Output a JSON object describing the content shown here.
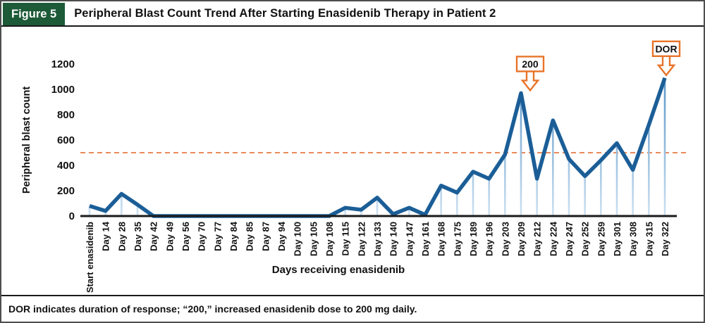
{
  "figure": {
    "label": "Figure 5",
    "title": "Peripheral Blast Count Trend After Starting Enasidenib Therapy in Patient 2",
    "footnote": "DOR indicates duration of response; “200,” increased enasidenib dose to 200 mg daily."
  },
  "chart_data": {
    "type": "line",
    "title": "Peripheral Blast Count Trend After Starting Enasidenib Therapy in Patient 2",
    "xlabel": "Days receiving enasidenib",
    "ylabel": "Peripheral blast count",
    "ylim": [
      0,
      1200
    ],
    "yticks": [
      0,
      200,
      400,
      600,
      800,
      1000,
      1200
    ],
    "grid": false,
    "legend": "none",
    "categories": [
      "Start enasidenib",
      "Day 14",
      "Day 28",
      "Day 35",
      "Day 42",
      "Day 49",
      "Day 56",
      "Day 70",
      "Day 77",
      "Day 84",
      "Day 85",
      "Day 87",
      "Day 94",
      "Day 100",
      "Day 105",
      "Day 108",
      "Day 115",
      "Day 122",
      "Day 133",
      "Day 140",
      "Day 147",
      "Day 161",
      "Day 168",
      "Day 175",
      "Day 189",
      "Day 196",
      "Day 203",
      "Day 209",
      "Day 212",
      "Day 224",
      "Day 247",
      "Day 252",
      "Day 259",
      "Day 301",
      "Day 308",
      "Day 315",
      "Day 322"
    ],
    "values": [
      80,
      40,
      175,
      90,
      0,
      0,
      0,
      0,
      0,
      0,
      0,
      0,
      0,
      0,
      0,
      0,
      65,
      50,
      145,
      15,
      65,
      10,
      240,
      185,
      350,
      295,
      485,
      970,
      295,
      755,
      450,
      315,
      440,
      575,
      365,
      720,
      1090
    ],
    "reference_line": {
      "value": 500,
      "style": "dashed"
    },
    "annotations": [
      {
        "label": "200",
        "category": "Day 209",
        "icon": "down-arrow"
      },
      {
        "label": "DOR",
        "category": "Day 322",
        "icon": "down-arrow"
      }
    ]
  },
  "colors": {
    "figure_label_bg": "#1d5a37",
    "figure_label_text": "#ffffff",
    "trend_line": "#1b5e97",
    "stem_top": "#4f8fc4",
    "stem_bottom": "#cde1f2",
    "reference_dash": "#e98a5a",
    "annotation_border": "#e8742a",
    "axis": "#1a1a1a",
    "text": "#111111"
  }
}
